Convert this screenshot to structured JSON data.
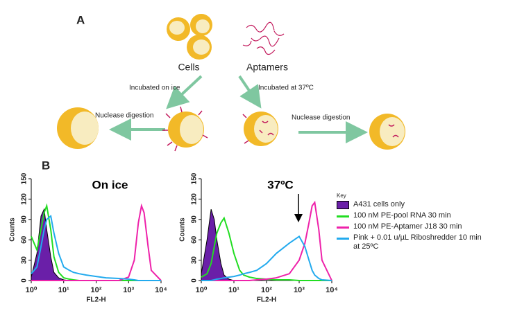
{
  "panel_a": {
    "label": "A",
    "cells": "Cells",
    "aptamers": "Aptamers",
    "incubated_ice": "Incubated on ice",
    "incubated_37": "Incubated at 37ºC",
    "nuclease_left": "Nuclease digestion",
    "nuclease_right": "Nuclease digestion"
  },
  "panel_b": {
    "label": "B"
  },
  "chart_data": [
    {
      "type": "line",
      "title": "On ice",
      "xlabel": "FL2-H",
      "ylabel": "Counts",
      "xscale": "log",
      "xlim": [
        1,
        10000
      ],
      "xticks": [
        {
          "value": 1,
          "label": "10⁰"
        },
        {
          "value": 10,
          "label": "10¹"
        },
        {
          "value": 100,
          "label": "10²"
        },
        {
          "value": 1000,
          "label": "10³"
        },
        {
          "value": 10000,
          "label": "10⁴"
        }
      ],
      "ylim": [
        0,
        150
      ],
      "yticks": [
        0,
        30,
        60,
        90,
        120,
        150
      ],
      "x": [
        1,
        1.5,
        2,
        2.5,
        3,
        4,
        5,
        7,
        10,
        15,
        20,
        30,
        50,
        100,
        200,
        500,
        1000,
        1500,
        2000,
        2500,
        3000,
        4000,
        5000,
        10000
      ],
      "series": [
        {
          "color": "#6a1fa8",
          "fill": true,
          "values": [
            5,
            40,
            95,
            105,
            75,
            35,
            12,
            4,
            1,
            0,
            0,
            0,
            0,
            0,
            0,
            0,
            0,
            0,
            0,
            0,
            0,
            0,
            0,
            0
          ]
        },
        {
          "color": "#22dd22",
          "values": [
            65,
            45,
            75,
            100,
            110,
            75,
            35,
            12,
            4,
            2,
            1,
            0,
            0,
            0,
            0,
            0,
            0,
            0,
            0,
            0,
            0,
            0,
            0,
            0
          ]
        },
        {
          "color": "#ee22aa",
          "values": [
            0,
            0,
            0,
            0,
            0,
            0,
            0,
            0,
            0,
            0,
            0,
            0,
            0,
            0,
            0,
            0,
            5,
            30,
            85,
            110,
            100,
            50,
            15,
            0
          ]
        },
        {
          "color": "#22aaee",
          "values": [
            10,
            20,
            50,
            75,
            90,
            95,
            70,
            40,
            20,
            15,
            12,
            10,
            8,
            6,
            4,
            3,
            2,
            1,
            0,
            0,
            0,
            0,
            0,
            0
          ]
        }
      ]
    },
    {
      "type": "line",
      "title": "37ºC",
      "xlabel": "FL2-H",
      "ylabel": "Counts",
      "xscale": "log",
      "xlim": [
        1,
        10000
      ],
      "xticks": [
        {
          "value": 1,
          "label": "10⁰"
        },
        {
          "value": 10,
          "label": "10¹"
        },
        {
          "value": 100,
          "label": "10²"
        },
        {
          "value": 1000,
          "label": "10³"
        },
        {
          "value": 10000,
          "label": "10⁴"
        }
      ],
      "ylim": [
        0,
        150
      ],
      "yticks": [
        0,
        30,
        60,
        90,
        120,
        150
      ],
      "legend": "right",
      "legend_title": "Key",
      "x": [
        1,
        1.5,
        2,
        2.5,
        3,
        4,
        5,
        7,
        10,
        15,
        20,
        30,
        50,
        100,
        200,
        500,
        1000,
        1500,
        2000,
        2500,
        3000,
        4000,
        5000,
        10000
      ],
      "series": [
        {
          "name": "A431 cells only",
          "color": "#6a1fa8",
          "fill": true,
          "values": [
            10,
            60,
            105,
            90,
            60,
            25,
            8,
            2,
            0,
            0,
            0,
            0,
            0,
            0,
            0,
            0,
            0,
            0,
            0,
            0,
            0,
            0,
            0,
            0
          ]
        },
        {
          "name": "100 nM PE-pool RNA 30 min",
          "color": "#22dd22",
          "values": [
            5,
            10,
            25,
            50,
            70,
            85,
            92,
            70,
            40,
            15,
            8,
            5,
            3,
            2,
            1,
            1,
            0,
            0,
            0,
            0,
            0,
            0,
            0,
            0
          ]
        },
        {
          "name": "100 nM PE-Aptamer J18 30 min",
          "color": "#ee22aa",
          "values": [
            0,
            0,
            0,
            0,
            0,
            0,
            0,
            0,
            0,
            0,
            0,
            0,
            1,
            2,
            4,
            10,
            30,
            55,
            85,
            110,
            115,
            75,
            30,
            0
          ]
        },
        {
          "name": "Pink + 0.01 u/µL Riboshredder 10 min at 25ºC",
          "color": "#22aaee",
          "values": [
            0,
            0,
            0,
            1,
            2,
            3,
            4,
            5,
            6,
            8,
            10,
            12,
            15,
            25,
            40,
            55,
            65,
            50,
            30,
            15,
            8,
            3,
            1,
            0
          ]
        }
      ]
    }
  ]
}
